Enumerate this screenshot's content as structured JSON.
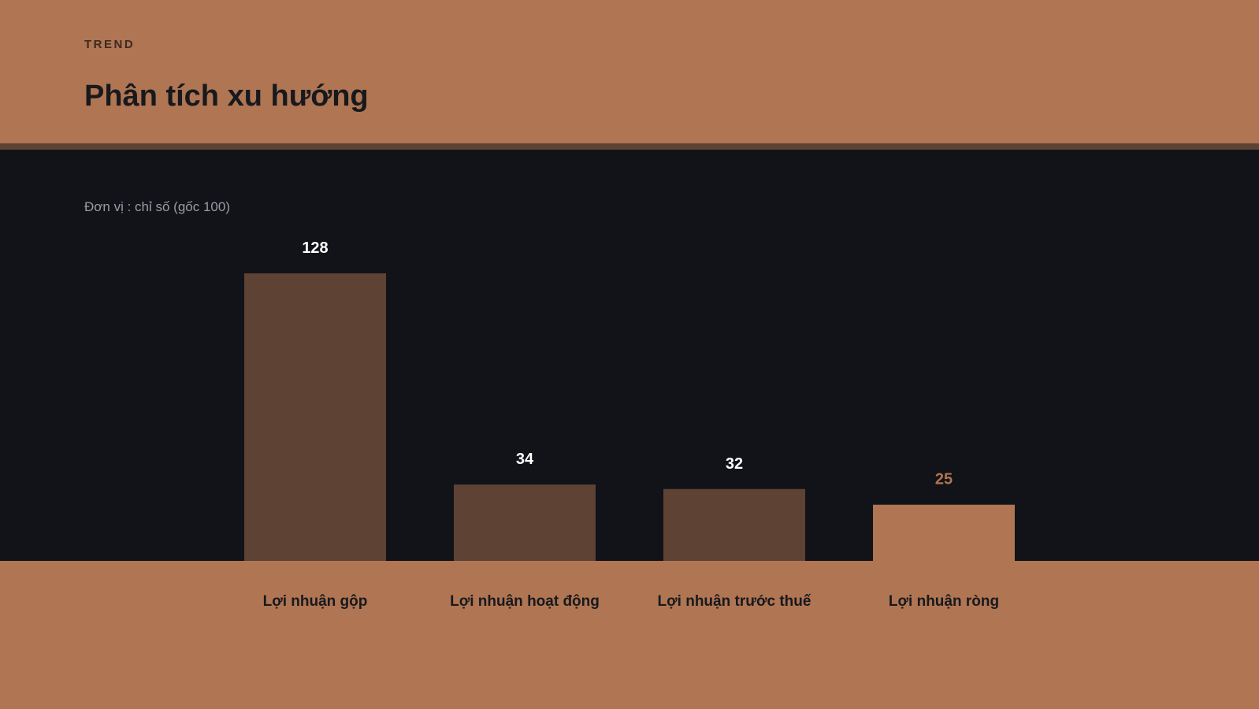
{
  "header": {
    "kicker": "TREND",
    "title": "Phân tích xu hướng"
  },
  "unit_note": "Đơn vị : chỉ số (gốc 100)",
  "colors": {
    "bar": "#5e4234",
    "bar_highlight": "#b07553",
    "value_text": "#ffffff",
    "value_highlight_text": "#b07553"
  },
  "chart_data": {
    "type": "bar",
    "categories": [
      "Lợi nhuận gộp",
      "Lợi nhuận hoạt động",
      "Lợi nhuận trước thuế",
      "Lợi nhuận ròng"
    ],
    "values": [
      128,
      34,
      32,
      25
    ],
    "highlight_index": 3,
    "ylim": [
      0,
      128
    ],
    "grid": false,
    "legend": "none",
    "xlabel": "",
    "ylabel": ""
  }
}
